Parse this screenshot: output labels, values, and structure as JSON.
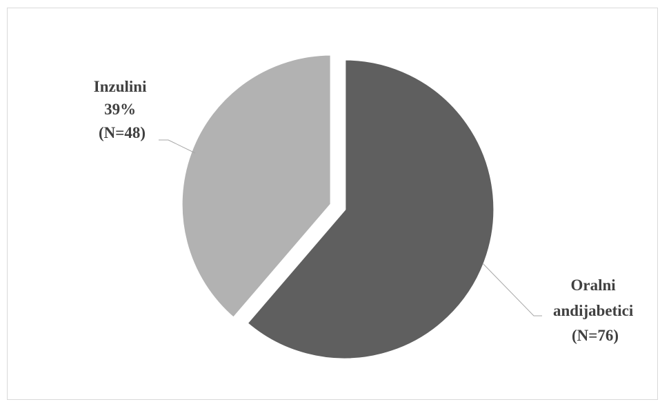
{
  "chart_data": {
    "type": "pie",
    "title": "",
    "slices": [
      {
        "name": "Oralni andijabetici",
        "label_lines": [
          "Oralni",
          "andijabetici",
          "(N=76)"
        ],
        "value": 76,
        "percent_label": "",
        "color": "#5f5f5f"
      },
      {
        "name": "Inzulini",
        "label_lines": [
          "Inzulini",
          "39%",
          "(N=48)"
        ],
        "value": 48,
        "percent_label": "39%",
        "color": "#b2b2b2"
      }
    ],
    "exploded": true,
    "legend": "none"
  }
}
